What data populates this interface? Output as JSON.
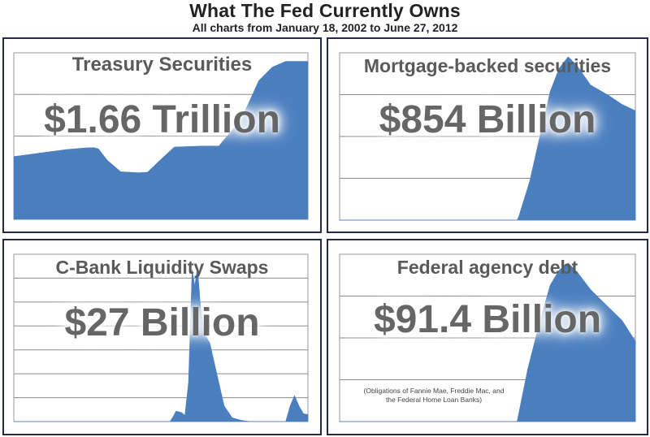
{
  "page": {
    "title": "What The Fed Currently Owns",
    "subtitle": "All charts from January 18, 2002 to June 27, 2012"
  },
  "chart_data": [
    {
      "type": "area",
      "title": "Treasury Securities",
      "annotation": "$1.66 Trillion",
      "color": "#4a7ebf",
      "x_range": [
        "2002-01-18",
        "2012-06-27"
      ],
      "ylim": [
        0,
        1.75
      ],
      "ylabel": "",
      "grid": true,
      "legend": "none",
      "series": [
        {
          "values": [
            [
              0,
              0.66
            ],
            [
              0.2,
              0.685
            ],
            [
              0.4,
              0.71
            ],
            [
              0.6,
              0.735
            ],
            [
              0.8,
              0.75
            ],
            [
              0.9,
              0.755
            ],
            [
              0.95,
              0.74
            ],
            [
              1.05,
              0.62
            ],
            [
              1.2,
              0.5
            ],
            [
              1.4,
              0.49
            ],
            [
              1.5,
              0.495
            ],
            [
              1.65,
              0.63
            ],
            [
              1.8,
              0.76
            ],
            [
              2.1,
              0.77
            ],
            [
              2.3,
              0.77
            ],
            [
              2.55,
              1.05
            ],
            [
              2.75,
              1.46
            ],
            [
              2.9,
              1.6
            ],
            [
              3.05,
              1.66
            ],
            [
              3.3,
              1.66
            ]
          ]
        }
      ]
    },
    {
      "type": "area",
      "title": "Mortgage-backed securities",
      "annotation": "$854 Billion",
      "color": "#4a7ebf",
      "x_range": [
        "2002-01-18",
        "2012-06-27"
      ],
      "ylim": [
        0,
        1.3
      ],
      "ylabel": "",
      "grid": true,
      "legend": "none",
      "series": [
        {
          "values": [
            [
              0,
              0
            ],
            [
              1.98,
              0
            ],
            [
              2.0,
              0.03
            ],
            [
              2.12,
              0.3
            ],
            [
              2.25,
              0.7
            ],
            [
              2.35,
              1.0
            ],
            [
              2.45,
              1.18
            ],
            [
              2.55,
              1.27
            ],
            [
              2.65,
              1.2
            ],
            [
              2.8,
              1.05
            ],
            [
              3.0,
              0.97
            ],
            [
              3.15,
              0.9
            ],
            [
              3.3,
              0.85
            ]
          ]
        }
      ]
    },
    {
      "type": "area",
      "title": "C-Bank Liquidity Swaps",
      "annotation": "$27 Billion",
      "color": "#4a7ebf",
      "x_range": [
        "2002-01-18",
        "2012-06-27"
      ],
      "ylim": [
        0,
        640
      ],
      "ylabel": "",
      "grid": true,
      "legend": "none",
      "series": [
        {
          "values": [
            [
              0,
              0
            ],
            [
              1.75,
              0
            ],
            [
              1.78,
              15
            ],
            [
              1.82,
              40
            ],
            [
              1.88,
              35
            ],
            [
              1.92,
              25
            ],
            [
              1.96,
              150
            ],
            [
              2.0,
              580
            ],
            [
              2.03,
              520
            ],
            [
              2.06,
              590
            ],
            [
              2.1,
              420
            ],
            [
              2.15,
              330
            ],
            [
              2.2,
              300
            ],
            [
              2.28,
              180
            ],
            [
              2.36,
              60
            ],
            [
              2.45,
              15
            ],
            [
              2.55,
              5
            ],
            [
              2.65,
              0
            ],
            [
              3.05,
              0
            ],
            [
              3.1,
              60
            ],
            [
              3.15,
              100
            ],
            [
              3.2,
              60
            ],
            [
              3.25,
              30
            ],
            [
              3.3,
              27
            ]
          ]
        }
      ]
    },
    {
      "type": "area",
      "title": "Federal agency debt",
      "annotation": "$91.4 Billion",
      "footnote_line1": "(Obligations of Fannie Mae, Freddie Mac, and",
      "footnote_line2": "the Federal Home Loan Banks)",
      "color": "#4a7ebf",
      "x_range": [
        "2002-01-18",
        "2012-06-27"
      ],
      "ylim": [
        0,
        190
      ],
      "ylabel": "",
      "grid": true,
      "legend": "none",
      "series": [
        {
          "values": [
            [
              0,
              0
            ],
            [
              1.98,
              0
            ],
            [
              2.0,
              10
            ],
            [
              2.1,
              60
            ],
            [
              2.25,
              120
            ],
            [
              2.35,
              155
            ],
            [
              2.45,
              172
            ],
            [
              2.55,
              180
            ],
            [
              2.65,
              170
            ],
            [
              2.8,
              150
            ],
            [
              3.0,
              130
            ],
            [
              3.15,
              115
            ],
            [
              3.3,
              91.4
            ]
          ]
        }
      ]
    }
  ]
}
